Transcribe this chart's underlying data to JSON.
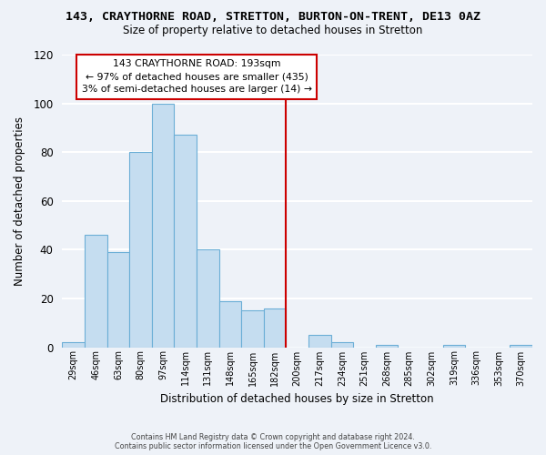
{
  "title": "143, CRAYTHORNE ROAD, STRETTON, BURTON-ON-TRENT, DE13 0AZ",
  "subtitle": "Size of property relative to detached houses in Stretton",
  "xlabel": "Distribution of detached houses by size in Stretton",
  "ylabel": "Number of detached properties",
  "bin_labels": [
    "29sqm",
    "46sqm",
    "63sqm",
    "80sqm",
    "97sqm",
    "114sqm",
    "131sqm",
    "148sqm",
    "165sqm",
    "182sqm",
    "200sqm",
    "217sqm",
    "234sqm",
    "251sqm",
    "268sqm",
    "285sqm",
    "302sqm",
    "319sqm",
    "336sqm",
    "353sqm",
    "370sqm"
  ],
  "bar_heights": [
    2,
    46,
    39,
    80,
    100,
    87,
    40,
    19,
    15,
    16,
    0,
    5,
    2,
    0,
    1,
    0,
    0,
    1,
    0,
    0,
    1
  ],
  "bar_color": "#c5ddf0",
  "bar_edge_color": "#6baed6",
  "vline_color": "#cc0000",
  "annotation_title": "143 CRAYTHORNE ROAD: 193sqm",
  "annotation_line1": "← 97% of detached houses are smaller (435)",
  "annotation_line2": "3% of semi-detached houses are larger (14) →",
  "annotation_box_color": "#ffffff",
  "annotation_box_edge": "#cc0000",
  "ylim": [
    0,
    120
  ],
  "yticks": [
    0,
    20,
    40,
    60,
    80,
    100,
    120
  ],
  "footer_line1": "Contains HM Land Registry data © Crown copyright and database right 2024.",
  "footer_line2": "Contains public sector information licensed under the Open Government Licence v3.0.",
  "bg_color": "#eef2f8",
  "grid_color": "#ffffff",
  "title_fontsize": 9.5,
  "subtitle_fontsize": 8.5
}
